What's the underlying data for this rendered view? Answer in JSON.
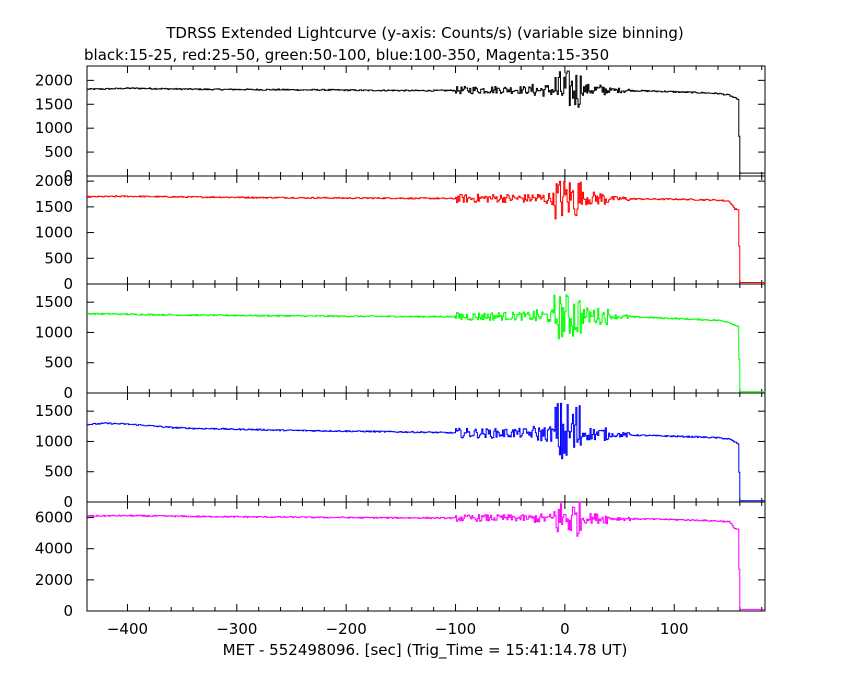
{
  "title": "TDRSS Extended Lightcurve (y-axis: Counts/s) (variable size binning)",
  "subtitle": "black:15-25, red:25-50, green:50-100, blue:100-350, Magenta:15-350",
  "chart_data": {
    "type": "line",
    "xlabel": "MET - 552498096. [sec] (Trig_Time = 15:41:14.78 UT)",
    "xlim": [
      -437,
      183
    ],
    "xticks": [
      -400,
      -300,
      -200,
      -100,
      0,
      100
    ],
    "grid": false,
    "panels": [
      {
        "series": "black",
        "band": "15-25",
        "color": "#000000",
        "ylim": [
          0,
          2300
        ],
        "yticks": [
          0,
          500,
          1000,
          1500,
          2000
        ],
        "x": [
          -437,
          -420,
          -400,
          -380,
          -360,
          -340,
          -320,
          -300,
          -280,
          -260,
          -240,
          -220,
          -200,
          -180,
          -160,
          -140,
          -120,
          -100,
          -80,
          -60,
          -40,
          -20,
          -10,
          -5,
          0,
          5,
          10,
          20,
          30,
          40,
          60,
          80,
          100,
          120,
          140,
          150,
          155,
          158,
          160,
          170,
          183
        ],
        "values": [
          1815,
          1820,
          1835,
          1830,
          1820,
          1815,
          1810,
          1810,
          1805,
          1805,
          1800,
          1800,
          1795,
          1790,
          1790,
          1785,
          1785,
          1790,
          1800,
          1805,
          1800,
          1790,
          1800,
          1780,
          1790,
          1800,
          1810,
          1805,
          1800,
          1795,
          1785,
          1775,
          1760,
          1745,
          1725,
          1690,
          1630,
          1600,
          60,
          60,
          60
        ],
        "noise": [
          [
            -100,
            -30,
            80
          ],
          [
            -30,
            -10,
            130
          ],
          [
            -10,
            15,
            430
          ],
          [
            15,
            40,
            120
          ],
          [
            40,
            60,
            50
          ]
        ]
      },
      {
        "series": "red",
        "band": "25-50",
        "color": "#ff0000",
        "ylim": [
          0,
          2100
        ],
        "yticks": [
          0,
          500,
          1000,
          1500,
          2000
        ],
        "x": [
          -437,
          -420,
          -400,
          -380,
          -360,
          -340,
          -320,
          -300,
          -280,
          -260,
          -240,
          -220,
          -200,
          -180,
          -160,
          -140,
          -120,
          -100,
          -80,
          -60,
          -40,
          -20,
          -10,
          -5,
          0,
          5,
          10,
          20,
          30,
          40,
          60,
          80,
          100,
          120,
          140,
          150,
          155,
          158,
          160,
          170,
          183
        ],
        "values": [
          1695,
          1700,
          1705,
          1700,
          1695,
          1690,
          1690,
          1685,
          1680,
          1680,
          1675,
          1675,
          1670,
          1670,
          1670,
          1665,
          1665,
          1660,
          1665,
          1670,
          1665,
          1660,
          1665,
          1650,
          1660,
          1670,
          1675,
          1670,
          1665,
          1660,
          1655,
          1650,
          1650,
          1640,
          1630,
          1610,
          1460,
          1440,
          30,
          30,
          30
        ],
        "noise": [
          [
            -100,
            -30,
            85
          ],
          [
            -30,
            -10,
            120
          ],
          [
            -10,
            15,
            420
          ],
          [
            15,
            40,
            130
          ],
          [
            40,
            60,
            45
          ]
        ]
      },
      {
        "series": "green",
        "band": "50-100",
        "color": "#00ff00",
        "ylim": [
          0,
          1800
        ],
        "yticks": [
          0,
          500,
          1000,
          1500
        ],
        "x": [
          -437,
          -420,
          -400,
          -380,
          -360,
          -340,
          -320,
          -300,
          -280,
          -260,
          -240,
          -220,
          -200,
          -180,
          -160,
          -140,
          -120,
          -100,
          -80,
          -60,
          -40,
          -20,
          -10,
          -5,
          0,
          5,
          10,
          20,
          30,
          40,
          60,
          80,
          100,
          120,
          140,
          150,
          155,
          158,
          160,
          170,
          183
        ],
        "values": [
          1310,
          1305,
          1300,
          1295,
          1290,
          1285,
          1285,
          1280,
          1278,
          1275,
          1272,
          1270,
          1268,
          1266,
          1265,
          1262,
          1260,
          1262,
          1265,
          1268,
          1270,
          1265,
          1270,
          1255,
          1265,
          1270,
          1280,
          1275,
          1270,
          1265,
          1255,
          1245,
          1230,
          1215,
          1200,
          1170,
          1120,
          1100,
          20,
          20,
          20
        ],
        "noise": [
          [
            -100,
            -30,
            70
          ],
          [
            -30,
            -10,
            110
          ],
          [
            -10,
            15,
            380
          ],
          [
            15,
            40,
            140
          ],
          [
            40,
            60,
            40
          ]
        ]
      },
      {
        "series": "blue",
        "band": "100-350",
        "color": "#0000ff",
        "ylim": [
          0,
          1800
        ],
        "yticks": [
          0,
          500,
          1000,
          1500
        ],
        "x": [
          -437,
          -420,
          -400,
          -380,
          -360,
          -340,
          -320,
          -300,
          -280,
          -260,
          -240,
          -220,
          -200,
          -180,
          -160,
          -140,
          -120,
          -100,
          -80,
          -60,
          -40,
          -20,
          -10,
          -5,
          0,
          5,
          10,
          20,
          30,
          40,
          60,
          80,
          100,
          120,
          140,
          150,
          155,
          158,
          160,
          170,
          183
        ],
        "values": [
          1280,
          1300,
          1285,
          1260,
          1230,
          1215,
          1210,
          1200,
          1195,
          1185,
          1180,
          1175,
          1170,
          1165,
          1160,
          1155,
          1150,
          1140,
          1135,
          1135,
          1140,
          1125,
          1130,
          1110,
          1120,
          1130,
          1135,
          1130,
          1120,
          1115,
          1105,
          1095,
          1085,
          1075,
          1060,
          1040,
          990,
          960,
          20,
          20,
          20
        ],
        "noise": [
          [
            -100,
            -30,
            80
          ],
          [
            -30,
            -10,
            130
          ],
          [
            -10,
            15,
            560
          ],
          [
            15,
            40,
            110
          ],
          [
            40,
            60,
            40
          ]
        ]
      },
      {
        "series": "Magenta",
        "band": "15-350",
        "color": "#ff00ff",
        "ylim": [
          0,
          7000
        ],
        "yticks": [
          0,
          2000,
          4000,
          6000
        ],
        "x": [
          -437,
          -420,
          -400,
          -380,
          -360,
          -340,
          -320,
          -300,
          -280,
          -260,
          -240,
          -220,
          -200,
          -180,
          -160,
          -140,
          -120,
          -100,
          -80,
          -60,
          -40,
          -20,
          -10,
          -5,
          0,
          5,
          10,
          20,
          30,
          40,
          60,
          80,
          100,
          120,
          140,
          150,
          155,
          158,
          160,
          170,
          183
        ],
        "values": [
          6100,
          6110,
          6120,
          6100,
          6090,
          6070,
          6060,
          6050,
          6040,
          6030,
          6020,
          6010,
          6000,
          5990,
          5985,
          5980,
          5975,
          5960,
          5970,
          5975,
          5965,
          5950,
          5960,
          5930,
          5940,
          5955,
          5970,
          5960,
          5950,
          5940,
          5920,
          5900,
          5870,
          5830,
          5780,
          5730,
          5300,
          5250,
          100,
          100,
          100
        ],
        "noise": [
          [
            -100,
            -30,
            220
          ],
          [
            -30,
            -10,
            300
          ],
          [
            -10,
            15,
            1200
          ],
          [
            15,
            40,
            330
          ],
          [
            40,
            60,
            120
          ]
        ]
      }
    ]
  }
}
